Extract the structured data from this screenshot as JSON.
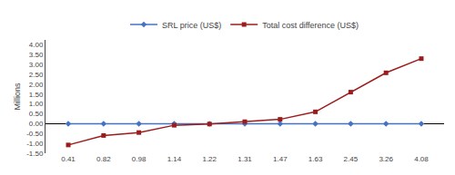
{
  "chart_data": {
    "type": "line",
    "categories": [
      "0.41",
      "0.82",
      "0.98",
      "1.14",
      "1.22",
      "1.31",
      "1.47",
      "1.63",
      "2.45",
      "3.26",
      "4.08"
    ],
    "series": [
      {
        "name": "SRL price (US$)",
        "color": "#4472C4",
        "marker": "diamond",
        "values": [
          0.0,
          0.0,
          0.0,
          0.0,
          0.0,
          0.0,
          0.0,
          0.0,
          0.0,
          0.0,
          0.0
        ]
      },
      {
        "name": "Total cost difference (US$)",
        "color": "#9B1C1C",
        "marker": "square",
        "values": [
          -1.08,
          -0.6,
          -0.45,
          -0.08,
          -0.02,
          0.1,
          0.22,
          0.6,
          1.6,
          2.58,
          3.3
        ]
      }
    ],
    "ylabel": "Millions",
    "ylim": [
      -1.5,
      4.25
    ],
    "yticks": [
      {
        "value": -1.5,
        "label": "-1.50"
      },
      {
        "value": -1.0,
        "label": "-1.00"
      },
      {
        "value": -0.5,
        "label": "-0.50"
      },
      {
        "value": 0.0,
        "label": "0.00"
      },
      {
        "value": 0.5,
        "label": "0.50"
      },
      {
        "value": 1.0,
        "label": "1.00"
      },
      {
        "value": 1.5,
        "label": "1.50"
      },
      {
        "value": 2.0,
        "label": "2.00"
      },
      {
        "value": 2.5,
        "label": "2.50"
      },
      {
        "value": 3.0,
        "label": "3.00"
      },
      {
        "value": 3.5,
        "label": "3.50"
      },
      {
        "value": 4.0,
        "label": "4.00"
      }
    ],
    "grid": false,
    "legend": "top"
  }
}
